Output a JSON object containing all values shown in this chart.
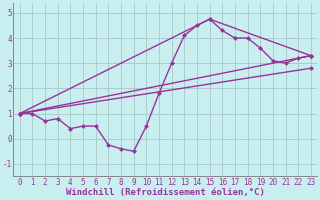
{
  "bg_color": "#c8eef0",
  "line_color": "#993399",
  "grid_color": "#9dbfbf",
  "xlabel": "Windchill (Refroidissement éolien,°C)",
  "xlim": [
    -0.5,
    23.5
  ],
  "ylim": [
    -1.5,
    5.4
  ],
  "yticks": [
    -1,
    0,
    1,
    2,
    3,
    4,
    5
  ],
  "xticks": [
    0,
    1,
    2,
    3,
    4,
    5,
    6,
    7,
    8,
    9,
    10,
    11,
    12,
    13,
    14,
    15,
    16,
    17,
    18,
    19,
    20,
    21,
    22,
    23
  ],
  "line1_x": [
    0,
    1,
    2,
    3,
    4,
    5,
    6,
    7,
    8,
    9,
    10,
    11,
    12,
    13,
    14,
    15,
    16,
    17,
    18,
    19,
    20,
    21,
    22,
    23
  ],
  "line1_y": [
    1.0,
    1.0,
    0.7,
    0.8,
    0.4,
    0.5,
    0.5,
    -0.25,
    -0.4,
    -0.5,
    0.5,
    1.8,
    3.0,
    4.1,
    4.5,
    4.75,
    4.3,
    4.0,
    4.0,
    3.6,
    3.1,
    3.0,
    3.2,
    3.3
  ],
  "line2_x": [
    0,
    15,
    23
  ],
  "line2_y": [
    1.0,
    4.75,
    3.3
  ],
  "line3_x": [
    0,
    23
  ],
  "line3_y": [
    1.0,
    3.3
  ],
  "line4_x": [
    0,
    23
  ],
  "line4_y": [
    1.0,
    2.8
  ],
  "markersize": 2.5,
  "linewidth": 1.0,
  "xlabel_fontsize": 6.5,
  "tick_fontsize": 5.5
}
